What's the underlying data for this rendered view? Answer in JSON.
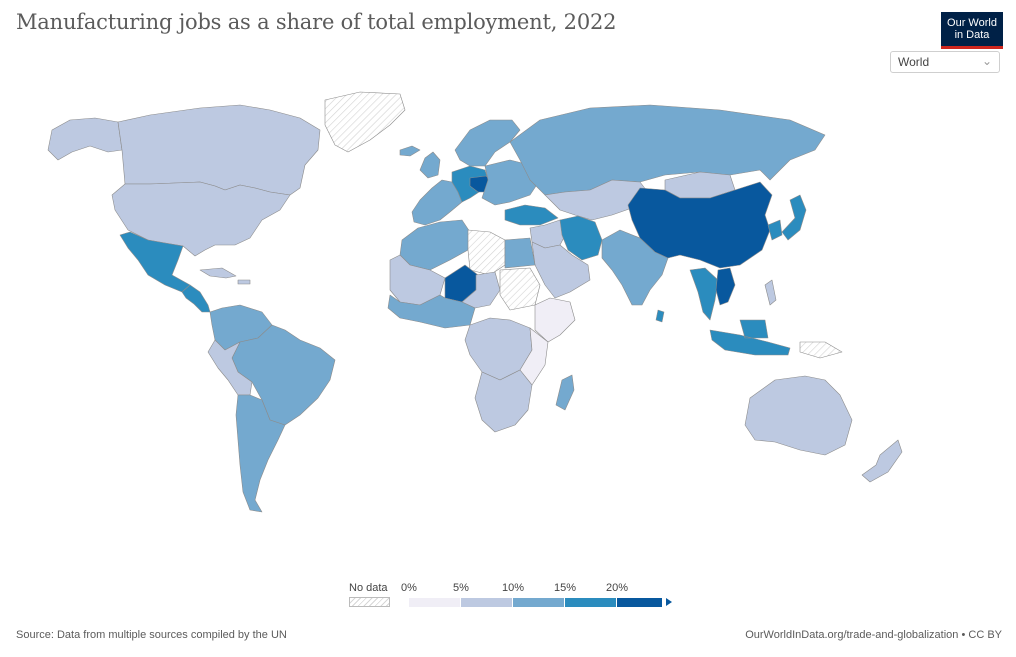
{
  "title": "Manufacturing jobs as a share of total employment, 2022",
  "logo": {
    "line1": "Our World",
    "line2": "in Data"
  },
  "region_select": {
    "value": "World"
  },
  "legend": {
    "nodata_label": "No data",
    "ticks": [
      "0%",
      "5%",
      "10%",
      "15%",
      "20%"
    ],
    "bins": [
      {
        "from": 0,
        "to": 5,
        "color": "#f0eef6"
      },
      {
        "from": 5,
        "to": 10,
        "color": "#bdc9e1"
      },
      {
        "from": 10,
        "to": 15,
        "color": "#74a9cf"
      },
      {
        "from": 15,
        "to": 20,
        "color": "#2b8cbe"
      },
      {
        "from": 20,
        "to": 25,
        "color": "#08589e"
      }
    ]
  },
  "footer": {
    "source": "Source: Data from multiple sources compiled by the UN",
    "url": "OurWorldInData.org/trade-and-globalization • CC BY"
  },
  "colors": {
    "nodata": "#ffffff",
    "border": "#8c8c8c"
  },
  "regions": [
    {
      "name": "canada",
      "bin": 1
    },
    {
      "name": "alaska",
      "bin": 1
    },
    {
      "name": "greenland",
      "bin": -1
    },
    {
      "name": "usa",
      "bin": 1
    },
    {
      "name": "mexico",
      "bin": 3
    },
    {
      "name": "central-america",
      "bin": 3
    },
    {
      "name": "caribbean",
      "bin": 1
    },
    {
      "name": "colombia-venezuela",
      "bin": 2
    },
    {
      "name": "brazil",
      "bin": 2
    },
    {
      "name": "peru-bolivia",
      "bin": 1
    },
    {
      "name": "argentina-chile",
      "bin": 2
    },
    {
      "name": "iceland",
      "bin": 2
    },
    {
      "name": "uk-ireland",
      "bin": 2
    },
    {
      "name": "western-europe",
      "bin": 2
    },
    {
      "name": "central-europe",
      "bin": 3
    },
    {
      "name": "czech-slovakia-hungary",
      "bin": 4
    },
    {
      "name": "scandinavia",
      "bin": 2
    },
    {
      "name": "eastern-europe",
      "bin": 2
    },
    {
      "name": "russia",
      "bin": 2
    },
    {
      "name": "turkey",
      "bin": 3
    },
    {
      "name": "caucasus-central-asia",
      "bin": 1
    },
    {
      "name": "middle-east",
      "bin": 1
    },
    {
      "name": "iran",
      "bin": 3
    },
    {
      "name": "arabia",
      "bin": 1
    },
    {
      "name": "libya",
      "bin": -1
    },
    {
      "name": "north-africa-west",
      "bin": 2
    },
    {
      "name": "egypt",
      "bin": 2
    },
    {
      "name": "sahel-west",
      "bin": 1
    },
    {
      "name": "niger",
      "bin": 4
    },
    {
      "name": "chad-sudan",
      "bin": 1
    },
    {
      "name": "sudan",
      "bin": -1
    },
    {
      "name": "west-africa-coast",
      "bin": 2
    },
    {
      "name": "horn-of-africa",
      "bin": 0
    },
    {
      "name": "central-africa",
      "bin": 1
    },
    {
      "name": "east-africa",
      "bin": 0
    },
    {
      "name": "southern-africa",
      "bin": 1
    },
    {
      "name": "madagascar",
      "bin": 2
    },
    {
      "name": "india",
      "bin": 2
    },
    {
      "name": "china",
      "bin": 4
    },
    {
      "name": "mongolia",
      "bin": 1
    },
    {
      "name": "korea-japan",
      "bin": 3
    },
    {
      "name": "southeast-asia",
      "bin": 3
    },
    {
      "name": "vietnam",
      "bin": 4
    },
    {
      "name": "indonesia-malaysia",
      "bin": 3
    },
    {
      "name": "philippines",
      "bin": 1
    },
    {
      "name": "papua",
      "bin": -1
    },
    {
      "name": "australia",
      "bin": 1
    },
    {
      "name": "new-zealand",
      "bin": 1
    },
    {
      "name": "sri-lanka",
      "bin": 3
    }
  ]
}
